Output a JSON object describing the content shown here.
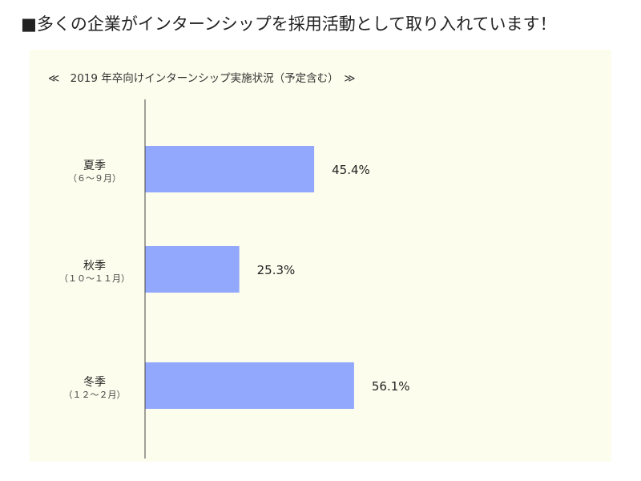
{
  "page": {
    "heading": "■多くの企業がインターンシップを採用活動として取り入れています！",
    "subtitle": "≪　2019 年卒向けインターンシップ実施状況（予定含む）　≫"
  },
  "colors": {
    "background": "#fdfdee",
    "bar": "#91a8fc",
    "axis": "#444444"
  },
  "chart_data": {
    "type": "bar",
    "orientation": "horizontal",
    "title": "≪　2019 年卒向けインターンシップ実施状況（予定含む）　≫",
    "categories": [
      {
        "label": "夏季",
        "sublabel": "（６～９月）"
      },
      {
        "label": "秋季",
        "sublabel": "（１０～１１月）"
      },
      {
        "label": "冬季",
        "sublabel": "（１２～２月）"
      }
    ],
    "values": [
      45.4,
      25.3,
      56.1
    ],
    "value_labels": [
      "45.4%",
      "25.3%",
      "56.1%"
    ],
    "unit": "%",
    "xlim": [
      0,
      100
    ],
    "grid": false,
    "legend": "none"
  }
}
